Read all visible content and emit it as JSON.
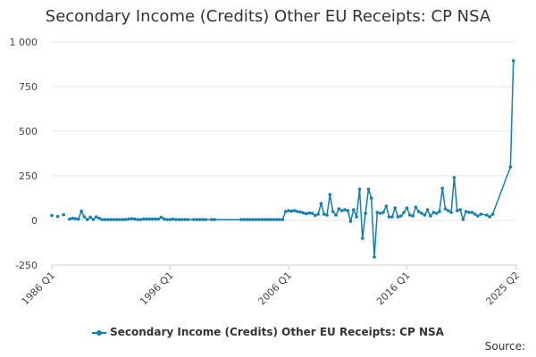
{
  "chart_data": {
    "type": "line",
    "title": "Secondary Income (Credits) Other EU Receipts: CP NSA",
    "xlabel": "",
    "ylabel": "",
    "ylim": [
      -250,
      1000
    ],
    "y_ticks": [
      "1 000",
      "750",
      "500",
      "250",
      "0",
      "-250"
    ],
    "y_tick_values": [
      1000,
      750,
      500,
      250,
      0,
      -250
    ],
    "x_range": [
      "1986 Q1",
      "2025 Q2"
    ],
    "x_ticks": [
      "1986 Q1",
      "1996 Q1",
      "2006 Q1",
      "2016 Q1",
      "2025 Q2"
    ],
    "x_tick_values": [
      1986.0,
      1996.0,
      2006.0,
      2016.0,
      2025.25
    ],
    "grid": true,
    "legend_position": "bottom",
    "series": [
      {
        "name": "Secondary Income (Credits) Other EU Receipts: CP NSA",
        "color": "#0f7fb6",
        "points": [
          [
            1986.0,
            28
          ],
          [
            1986.5,
            22
          ],
          [
            1987.0,
            32
          ],
          [
            1987.5,
            8
          ],
          [
            1987.75,
            12
          ],
          [
            1988.0,
            10
          ],
          [
            1988.25,
            8
          ],
          [
            1988.5,
            52
          ],
          [
            1988.75,
            20
          ],
          [
            1989.0,
            5
          ],
          [
            1989.25,
            18
          ],
          [
            1989.5,
            5
          ],
          [
            1989.75,
            20
          ],
          [
            1990.0,
            12
          ],
          [
            1990.25,
            5
          ],
          [
            1990.5,
            5
          ],
          [
            1990.75,
            5
          ],
          [
            1991.0,
            5
          ],
          [
            1991.25,
            5
          ],
          [
            1991.5,
            5
          ],
          [
            1991.75,
            5
          ],
          [
            1992.0,
            5
          ],
          [
            1992.25,
            5
          ],
          [
            1992.5,
            8
          ],
          [
            1992.75,
            10
          ],
          [
            1993.0,
            8
          ],
          [
            1993.25,
            5
          ],
          [
            1993.5,
            5
          ],
          [
            1993.75,
            8
          ],
          [
            1994.0,
            8
          ],
          [
            1994.25,
            8
          ],
          [
            1994.5,
            8
          ],
          [
            1994.75,
            8
          ],
          [
            1995.0,
            8
          ],
          [
            1995.25,
            18
          ],
          [
            1995.5,
            8
          ],
          [
            1995.75,
            5
          ],
          [
            1996.0,
            5
          ],
          [
            1996.25,
            8
          ],
          [
            1996.5,
            5
          ],
          [
            1996.75,
            5
          ],
          [
            1997.0,
            5
          ],
          [
            1997.25,
            5
          ],
          [
            1997.5,
            5
          ],
          [
            1998.0,
            5
          ],
          [
            1998.25,
            5
          ],
          [
            1998.5,
            5
          ],
          [
            1998.75,
            5
          ],
          [
            1999.0,
            5
          ],
          [
            1999.5,
            5
          ],
          [
            1999.75,
            5
          ],
          [
            2002.0,
            5
          ],
          [
            2002.25,
            5
          ],
          [
            2002.5,
            5
          ],
          [
            2002.75,
            5
          ],
          [
            2003.0,
            5
          ],
          [
            2003.25,
            5
          ],
          [
            2003.5,
            5
          ],
          [
            2003.75,
            5
          ],
          [
            2004.0,
            5
          ],
          [
            2004.25,
            5
          ],
          [
            2004.5,
            5
          ],
          [
            2004.75,
            5
          ],
          [
            2005.0,
            5
          ],
          [
            2005.25,
            5
          ],
          [
            2005.5,
            5
          ],
          [
            2005.75,
            50
          ],
          [
            2006.0,
            55
          ],
          [
            2006.25,
            52
          ],
          [
            2006.5,
            55
          ],
          [
            2006.75,
            50
          ],
          [
            2007.0,
            48
          ],
          [
            2007.25,
            42
          ],
          [
            2007.5,
            38
          ],
          [
            2007.75,
            42
          ],
          [
            2008.0,
            40
          ],
          [
            2008.25,
            28
          ],
          [
            2008.5,
            35
          ],
          [
            2008.75,
            95
          ],
          [
            2009.0,
            35
          ],
          [
            2009.25,
            30
          ],
          [
            2009.5,
            145
          ],
          [
            2009.75,
            50
          ],
          [
            2010.0,
            30
          ],
          [
            2010.25,
            65
          ],
          [
            2010.5,
            55
          ],
          [
            2010.75,
            60
          ],
          [
            2011.0,
            55
          ],
          [
            2011.25,
            -5
          ],
          [
            2011.5,
            60
          ],
          [
            2011.75,
            20
          ],
          [
            2012.0,
            175
          ],
          [
            2012.25,
            -100
          ],
          [
            2012.5,
            40
          ],
          [
            2012.75,
            175
          ],
          [
            2013.0,
            125
          ],
          [
            2013.25,
            -205
          ],
          [
            2013.5,
            45
          ],
          [
            2013.75,
            40
          ],
          [
            2014.0,
            45
          ],
          [
            2014.25,
            80
          ],
          [
            2014.5,
            20
          ],
          [
            2014.75,
            20
          ],
          [
            2015.0,
            70
          ],
          [
            2015.25,
            20
          ],
          [
            2015.5,
            25
          ],
          [
            2015.75,
            45
          ],
          [
            2016.0,
            70
          ],
          [
            2016.25,
            30
          ],
          [
            2016.5,
            25
          ],
          [
            2016.75,
            75
          ],
          [
            2017.0,
            50
          ],
          [
            2017.25,
            40
          ],
          [
            2017.5,
            30
          ],
          [
            2017.75,
            60
          ],
          [
            2018.0,
            25
          ],
          [
            2018.25,
            45
          ],
          [
            2018.5,
            40
          ],
          [
            2018.75,
            50
          ],
          [
            2019.0,
            180
          ],
          [
            2019.25,
            65
          ],
          [
            2019.5,
            55
          ],
          [
            2019.75,
            45
          ],
          [
            2020.0,
            240
          ],
          [
            2020.25,
            55
          ],
          [
            2020.5,
            60
          ],
          [
            2020.75,
            5
          ],
          [
            2021.0,
            50
          ],
          [
            2021.25,
            45
          ],
          [
            2021.5,
            45
          ],
          [
            2021.75,
            35
          ],
          [
            2022.0,
            25
          ],
          [
            2022.25,
            35
          ],
          [
            2022.75,
            30
          ],
          [
            2023.0,
            20
          ],
          [
            2023.25,
            35
          ],
          [
            2024.75,
            300
          ],
          [
            2025.0,
            895
          ]
        ],
        "segments": [
          [
            0,
            1
          ],
          [
            1,
            2
          ],
          [
            2,
            3
          ],
          [
            3,
            45
          ],
          [
            45,
            50
          ],
          [
            50,
            52
          ],
          [
            52,
            140
          ],
          [
            140,
            143
          ],
          [
            143,
            145
          ]
        ]
      }
    ]
  },
  "legend": {
    "label": "Secondary Income (Credits) Other EU Receipts: CP NSA"
  },
  "footer": {
    "source_label": "Source:"
  }
}
